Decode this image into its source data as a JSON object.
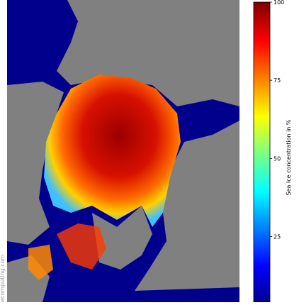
{
  "map": {
    "watermark": "ecomputing.com",
    "colorbar": {
      "label": "Sea Ice concentration in %",
      "lim": [
        4,
        100
      ],
      "ticks": [
        25,
        50,
        75,
        100
      ]
    }
  }
}
